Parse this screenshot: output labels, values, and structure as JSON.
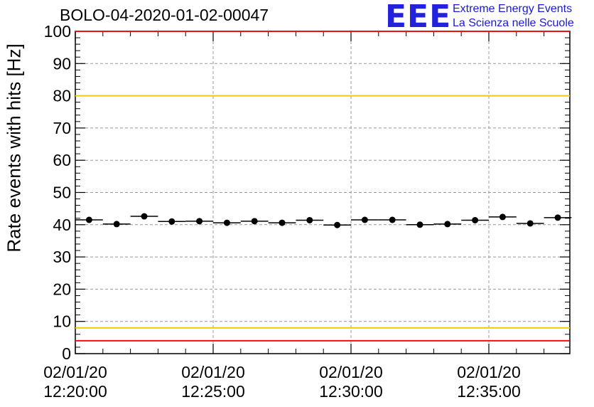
{
  "chart_data": {
    "type": "scatter",
    "title": "BOLO-04-2020-01-02-00047",
    "ylabel": "Rate events with hits [Hz]",
    "xlabel": "",
    "ylim": [
      0,
      100
    ],
    "yticks": [
      "0",
      "10",
      "20",
      "30",
      "40",
      "50",
      "60",
      "70",
      "80",
      "90",
      "100"
    ],
    "xticks": [
      {
        "date": "02/01/20",
        "time": "12:20:00"
      },
      {
        "date": "02/01/20",
        "time": "12:25:00"
      },
      {
        "date": "02/01/20",
        "time": "12:30:00"
      },
      {
        "date": "02/01/20",
        "time": "12:35:00"
      }
    ],
    "x_unit": "02/01/20 time",
    "x": [
      "12:20:30",
      "12:21:30",
      "12:22:30",
      "12:23:30",
      "12:24:30",
      "12:25:30",
      "12:26:30",
      "12:27:30",
      "12:28:30",
      "12:29:30",
      "12:30:30",
      "12:31:30",
      "12:32:30",
      "12:33:30",
      "12:34:30",
      "12:35:30",
      "12:36:30",
      "12:37:30"
    ],
    "values": [
      41.5,
      40.2,
      42.6,
      41.0,
      41.1,
      40.6,
      41.1,
      40.6,
      41.4,
      39.9,
      41.5,
      41.5,
      40.0,
      40.2,
      41.4,
      42.4,
      40.4,
      42.2
    ],
    "reference_lines": [
      {
        "value": 100,
        "color": "#ee1111"
      },
      {
        "value": 80,
        "color": "#eecc00"
      },
      {
        "value": 8,
        "color": "#eecc00"
      },
      {
        "value": 4,
        "color": "#ee1111"
      }
    ],
    "grid": true,
    "colors": {
      "points": "#000000",
      "grid": "#999999"
    }
  },
  "logo": {
    "mark": "EEE",
    "line1": "Extreme Energy Events",
    "line2": "La Scienza nelle Scuole",
    "color": "#2222dd"
  }
}
